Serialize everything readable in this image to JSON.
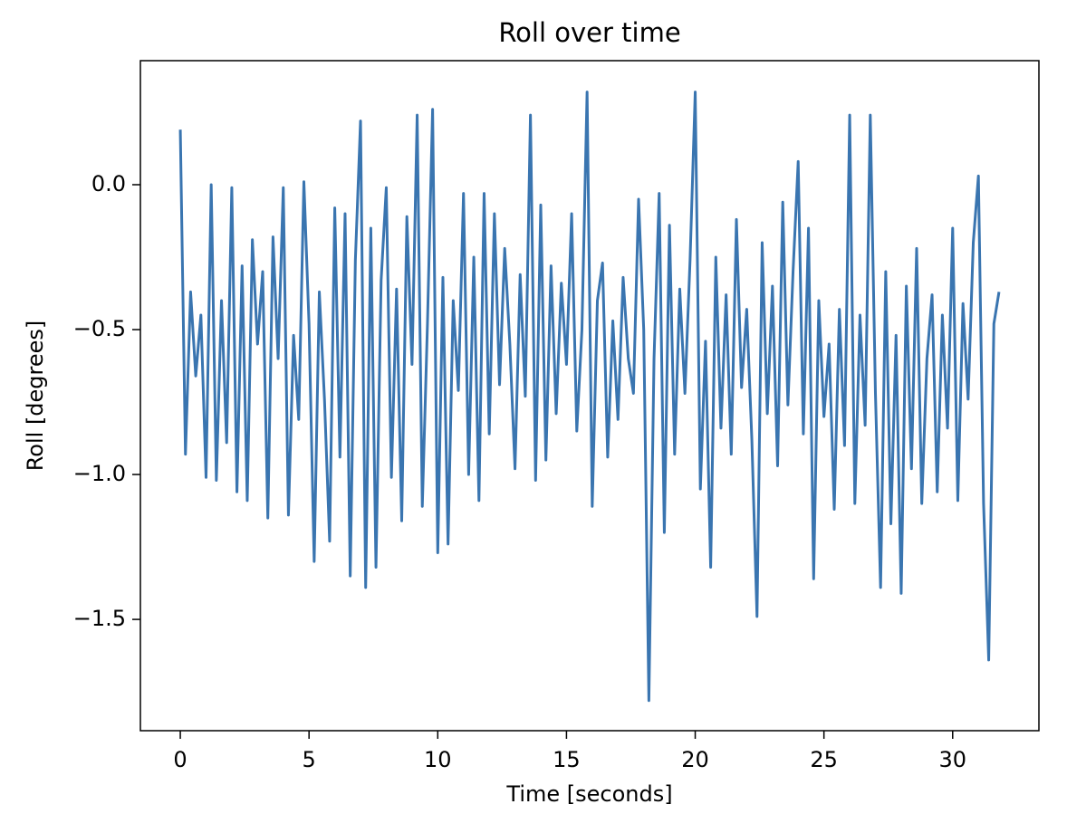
{
  "chart_data": {
    "type": "line",
    "title": "Roll over time",
    "x_label": "Time [seconds]",
    "y_label": "Roll [degrees]",
    "color": "#3a75b0",
    "x": [
      0,
      0.2,
      0.4,
      0.6,
      0.8,
      1,
      1.2,
      1.4,
      1.6,
      1.8,
      2,
      2.2,
      2.4,
      2.6,
      2.8,
      3,
      3.2,
      3.4,
      3.6,
      3.8,
      4,
      4.2,
      4.4,
      4.6,
      4.8,
      5,
      5.2,
      5.4,
      5.6,
      5.8,
      6,
      6.2,
      6.4,
      6.6,
      6.8,
      7,
      7.2,
      7.4,
      7.6,
      7.8,
      8,
      8.2,
      8.4,
      8.6,
      8.8,
      9,
      9.2,
      9.4,
      9.6,
      9.8,
      10,
      10.2,
      10.4,
      10.6,
      10.8,
      11,
      11.2,
      11.4,
      11.6,
      11.8,
      12,
      12.2,
      12.4,
      12.6,
      12.8,
      13,
      13.2,
      13.4,
      13.6,
      13.8,
      14,
      14.2,
      14.4,
      14.6,
      14.8,
      15,
      15.2,
      15.4,
      15.6,
      15.8,
      16,
      16.2,
      16.4,
      16.6,
      16.8,
      17,
      17.2,
      17.4,
      17.6,
      17.8,
      18,
      18.2,
      18.4,
      18.6,
      18.8,
      19,
      19.2,
      19.4,
      19.6,
      19.8,
      20,
      20.2,
      20.4,
      20.6,
      20.8,
      21,
      21.2,
      21.4,
      21.6,
      21.8,
      22,
      22.2,
      22.4,
      22.6,
      22.8,
      23,
      23.2,
      23.4,
      23.6,
      23.8,
      24,
      24.2,
      24.4,
      24.6,
      24.8,
      25,
      25.2,
      25.4,
      25.6,
      25.8,
      26,
      26.2,
      26.4,
      26.6,
      26.8,
      27,
      27.2,
      27.4,
      27.6,
      27.8,
      28,
      28.2,
      28.4,
      28.6,
      28.8,
      29,
      29.2,
      29.4,
      29.6,
      29.8,
      30,
      30.2,
      30.4,
      30.6,
      30.8,
      31,
      31.2,
      31.4,
      31.6,
      31.8
    ],
    "values": [
      0.19,
      -0.93,
      -0.37,
      -0.66,
      -0.45,
      -1.01,
      0.0,
      -1.02,
      -0.4,
      -0.89,
      -0.01,
      -1.06,
      -0.28,
      -1.09,
      -0.19,
      -0.55,
      -0.3,
      -1.15,
      -0.18,
      -0.6,
      -0.01,
      -1.14,
      -0.52,
      -0.81,
      0.01,
      -0.48,
      -1.3,
      -0.37,
      -0.74,
      -1.23,
      -0.08,
      -0.94,
      -0.1,
      -1.35,
      -0.26,
      0.22,
      -1.39,
      -0.15,
      -1.32,
      -0.33,
      -0.01,
      -1.01,
      -0.36,
      -1.16,
      -0.11,
      -0.62,
      0.24,
      -1.11,
      -0.48,
      0.26,
      -1.27,
      -0.32,
      -1.24,
      -0.4,
      -0.71,
      -0.03,
      -1.0,
      -0.25,
      -1.09,
      -0.03,
      -0.86,
      -0.1,
      -0.69,
      -0.22,
      -0.55,
      -0.98,
      -0.31,
      -0.73,
      0.24,
      -1.02,
      -0.07,
      -0.95,
      -0.28,
      -0.79,
      -0.34,
      -0.62,
      -0.1,
      -0.85,
      -0.5,
      0.32,
      -1.11,
      -0.4,
      -0.27,
      -0.94,
      -0.47,
      -0.81,
      -0.32,
      -0.6,
      -0.72,
      -0.05,
      -0.5,
      -1.78,
      -0.6,
      -0.03,
      -1.2,
      -0.14,
      -0.93,
      -0.36,
      -0.72,
      -0.26,
      0.32,
      -1.05,
      -0.54,
      -1.32,
      -0.25,
      -0.84,
      -0.38,
      -0.93,
      -0.12,
      -0.7,
      -0.43,
      -0.88,
      -1.49,
      -0.2,
      -0.79,
      -0.35,
      -0.97,
      -0.06,
      -0.76,
      -0.3,
      0.08,
      -0.86,
      -0.15,
      -1.36,
      -0.4,
      -0.8,
      -0.55,
      -1.12,
      -0.43,
      -0.9,
      0.24,
      -1.1,
      -0.45,
      -0.83,
      0.24,
      -0.72,
      -1.39,
      -0.3,
      -1.17,
      -0.52,
      -1.41,
      -0.35,
      -0.98,
      -0.22,
      -1.1,
      -0.6,
      -0.38,
      -1.06,
      -0.45,
      -0.84,
      -0.15,
      -1.09,
      -0.41,
      -0.74,
      -0.2,
      0.03,
      -1.1,
      -1.64,
      -0.48,
      -0.37
    ],
    "xlim": [
      -1.55,
      33.35
    ],
    "ylim": [
      -1.884,
      0.428
    ],
    "xticks": [
      0,
      5,
      10,
      15,
      20,
      25,
      30
    ],
    "yticks": [
      {
        "value": -1.5,
        "label": "−1.5"
      },
      {
        "value": -1.0,
        "label": "−1.0"
      },
      {
        "value": -0.5,
        "label": "−0.5"
      },
      {
        "value": 0,
        "label": "0.0"
      }
    ]
  }
}
